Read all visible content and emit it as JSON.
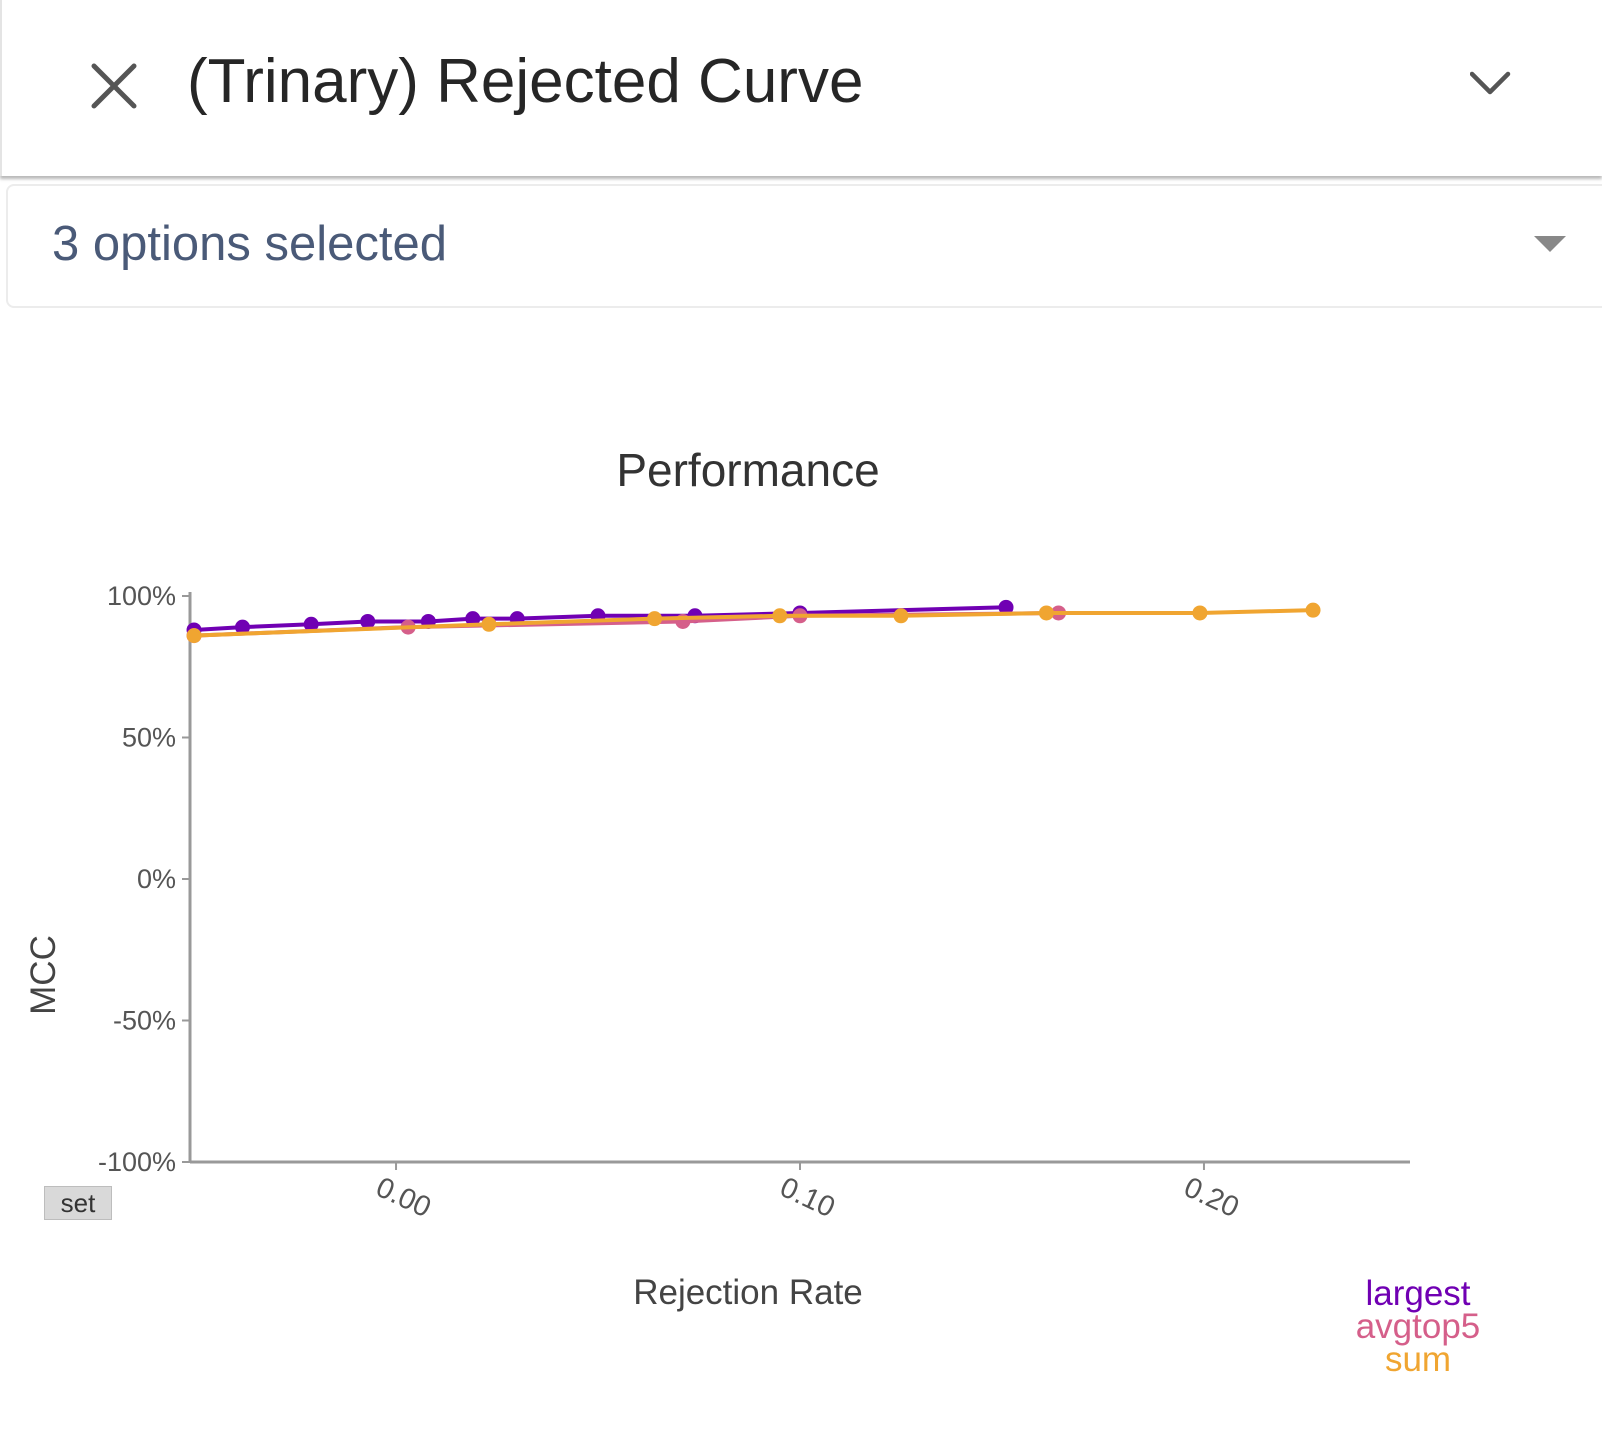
{
  "header": {
    "title": "(Trinary) Rejected Curve",
    "close_icon": "close-icon",
    "expand_icon": "chevron-down-icon"
  },
  "selector": {
    "value": "3 options selected",
    "caret_icon": "caret-down-icon"
  },
  "set_button": {
    "label": "set"
  },
  "chart_data": {
    "type": "line",
    "title": "Performance",
    "xlabel": "Rejection Rate",
    "ylabel": "MCC",
    "xlim": [
      -0.051,
      0.251
    ],
    "ylim": [
      -1.0,
      1.0
    ],
    "x_ticks": [
      0.0,
      0.1,
      0.2
    ],
    "x_tick_labels": [
      "0.00",
      "0.10",
      "0.20"
    ],
    "y_ticks": [
      1.0,
      0.5,
      0.0,
      -0.5,
      -1.0
    ],
    "y_tick_labels": [
      "100%",
      "50%",
      "0%",
      "-50%",
      "-100%"
    ],
    "grid": false,
    "legend_position": "bottom-right",
    "series": [
      {
        "name": "largest",
        "color": "#7000b3",
        "x": [
          -0.05,
          -0.038,
          -0.021,
          -0.007,
          0.008,
          0.019,
          0.03,
          0.05,
          0.074,
          0.1,
          0.151
        ],
        "y": [
          0.88,
          0.89,
          0.9,
          0.91,
          0.91,
          0.92,
          0.92,
          0.93,
          0.93,
          0.94,
          0.96
        ]
      },
      {
        "name": "avgtop5",
        "color": "#d55f8a",
        "x": [
          -0.05,
          0.003,
          0.071,
          0.1,
          0.164
        ],
        "y": [
          0.86,
          0.89,
          0.91,
          0.93,
          0.94
        ]
      },
      {
        "name": "sum",
        "color": "#f0a531",
        "x": [
          -0.05,
          0.023,
          0.064,
          0.095,
          0.125,
          0.161,
          0.199,
          0.227
        ],
        "y": [
          0.86,
          0.9,
          0.92,
          0.93,
          0.93,
          0.94,
          0.94,
          0.95
        ]
      }
    ]
  }
}
